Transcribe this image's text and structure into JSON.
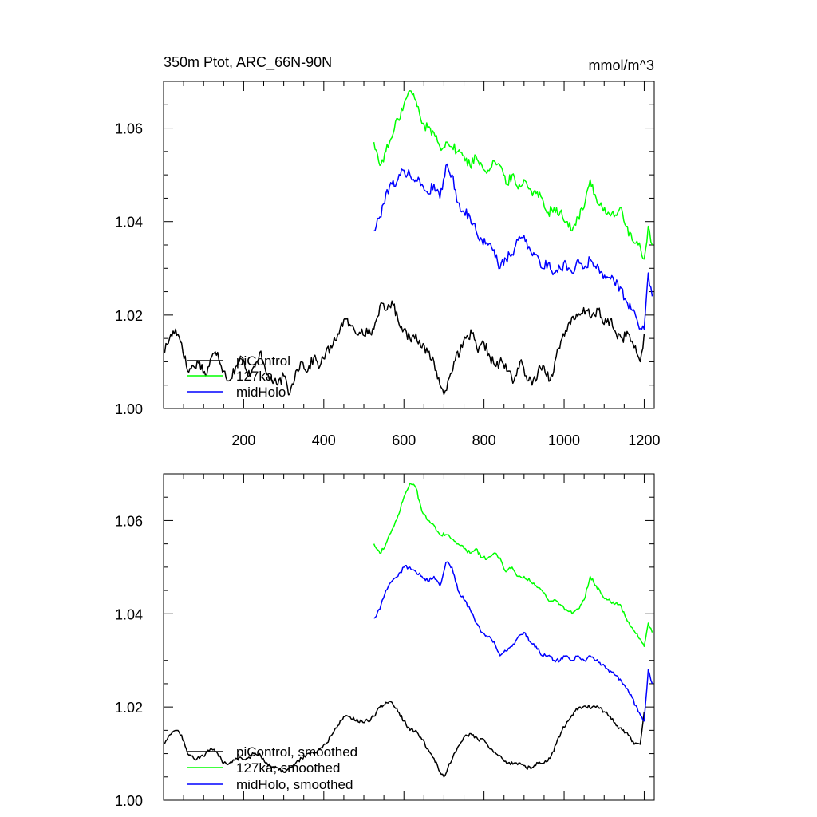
{
  "header": {
    "title": "350m Ptot, ARC_66N-90N",
    "units": "mmol/m^3"
  },
  "colors": {
    "piControl": "#000000",
    "127ka": "#00ff00",
    "midHolo": "#0000ff"
  },
  "chart_data": [
    {
      "type": "line",
      "panel": "top",
      "title": "350m Ptot, ARC_66N-90N",
      "units": "mmol/m^3",
      "xlim": [
        0,
        1225
      ],
      "ylim": [
        1.0,
        1.07
      ],
      "x_ticks": [
        200,
        400,
        600,
        800,
        1000,
        1200
      ],
      "x_tick_labels": [
        "200",
        "400",
        "600",
        "800",
        "1000",
        "1200"
      ],
      "y_ticks": [
        1.0,
        1.02,
        1.04,
        1.06
      ],
      "y_tick_labels": [
        "1.00",
        "1.02",
        "1.04",
        "1.06"
      ],
      "legend": "bottom-left",
      "series": [
        {
          "name": "piControl",
          "color": "#000000",
          "x": [
            0,
            15,
            30,
            45,
            60,
            75,
            90,
            105,
            120,
            135,
            150,
            165,
            180,
            195,
            210,
            225,
            240,
            255,
            270,
            285,
            300,
            315,
            330,
            345,
            360,
            375,
            390,
            405,
            420,
            435,
            450,
            465,
            480,
            495,
            510,
            525,
            540,
            555,
            570,
            585,
            600,
            615,
            630,
            645,
            660,
            675,
            690,
            700,
            710,
            725,
            740,
            755,
            770,
            785,
            800,
            815,
            830,
            845,
            860,
            875,
            890,
            905,
            920,
            935,
            950,
            965,
            980,
            995,
            1010,
            1025,
            1040,
            1055,
            1070,
            1085,
            1100,
            1115,
            1130,
            1145,
            1160,
            1175,
            1190,
            1200
          ],
          "y": [
            1.012,
            1.015,
            1.017,
            1.014,
            1.008,
            1.009,
            1.01,
            1.007,
            1.011,
            1.012,
            1.008,
            1.006,
            1.009,
            1.011,
            1.007,
            1.009,
            1.012,
            1.008,
            1.006,
            1.005,
            1.007,
            1.003,
            1.008,
            1.01,
            1.008,
            1.011,
            1.009,
            1.012,
            1.013,
            1.016,
            1.019,
            1.018,
            1.016,
            1.017,
            1.016,
            1.017,
            1.022,
            1.021,
            1.023,
            1.019,
            1.017,
            1.015,
            1.016,
            1.013,
            1.012,
            1.01,
            1.005,
            1.003,
            1.006,
            1.01,
            1.012,
            1.015,
            1.016,
            1.012,
            1.014,
            1.011,
            1.009,
            1.01,
            1.008,
            1.006,
            1.01,
            1.007,
            1.005,
            1.008,
            1.009,
            1.006,
            1.011,
            1.015,
            1.018,
            1.019,
            1.02,
            1.021,
            1.02,
            1.021,
            1.018,
            1.019,
            1.016,
            1.015,
            1.016,
            1.013,
            1.01,
            1.016
          ]
        },
        {
          "name": "127ka",
          "color": "#00ff00",
          "x": [
            525,
            540,
            555,
            570,
            585,
            600,
            615,
            630,
            645,
            660,
            675,
            690,
            705,
            720,
            735,
            750,
            765,
            780,
            795,
            810,
            825,
            840,
            855,
            870,
            885,
            900,
            915,
            930,
            945,
            960,
            975,
            990,
            1005,
            1020,
            1035,
            1050,
            1065,
            1080,
            1095,
            1110,
            1125,
            1140,
            1155,
            1170,
            1185,
            1200,
            1210,
            1220
          ],
          "y": [
            1.057,
            1.052,
            1.055,
            1.058,
            1.062,
            1.065,
            1.068,
            1.066,
            1.061,
            1.06,
            1.059,
            1.056,
            1.057,
            1.056,
            1.055,
            1.054,
            1.052,
            1.054,
            1.052,
            1.051,
            1.053,
            1.052,
            1.048,
            1.05,
            1.047,
            1.049,
            1.047,
            1.046,
            1.045,
            1.042,
            1.043,
            1.042,
            1.04,
            1.038,
            1.041,
            1.043,
            1.049,
            1.045,
            1.043,
            1.042,
            1.041,
            1.043,
            1.039,
            1.036,
            1.035,
            1.032,
            1.039,
            1.035
          ]
        },
        {
          "name": "midHolo",
          "color": "#0000ff",
          "x": [
            525,
            540,
            555,
            570,
            585,
            600,
            615,
            630,
            645,
            660,
            675,
            690,
            705,
            720,
            735,
            750,
            765,
            780,
            795,
            810,
            825,
            840,
            855,
            870,
            885,
            900,
            915,
            930,
            945,
            960,
            975,
            990,
            1005,
            1020,
            1035,
            1050,
            1065,
            1080,
            1095,
            1110,
            1125,
            1140,
            1155,
            1170,
            1185,
            1200,
            1210,
            1220
          ],
          "y": [
            1.038,
            1.041,
            1.046,
            1.048,
            1.049,
            1.051,
            1.05,
            1.049,
            1.048,
            1.046,
            1.048,
            1.045,
            1.052,
            1.05,
            1.044,
            1.042,
            1.041,
            1.038,
            1.036,
            1.035,
            1.034,
            1.03,
            1.032,
            1.033,
            1.036,
            1.037,
            1.034,
            1.033,
            1.03,
            1.031,
            1.029,
            1.03,
            1.031,
            1.029,
            1.032,
            1.03,
            1.032,
            1.03,
            1.029,
            1.028,
            1.027,
            1.026,
            1.023,
            1.021,
            1.018,
            1.017,
            1.029,
            1.024
          ]
        }
      ]
    },
    {
      "type": "line",
      "panel": "bottom",
      "xlim": [
        0,
        1225
      ],
      "ylim": [
        1.0,
        1.07
      ],
      "x_ticks": [
        200,
        400,
        600,
        800,
        1000,
        1200
      ],
      "x_tick_labels": [],
      "y_ticks": [
        1.0,
        1.02,
        1.04,
        1.06
      ],
      "y_tick_labels": [
        "1.00",
        "1.02",
        "1.04",
        "1.06"
      ],
      "legend": "bottom-left",
      "series": [
        {
          "name": "piControl, smoothed",
          "color": "#000000",
          "x": [
            0,
            15,
            30,
            45,
            60,
            75,
            90,
            105,
            120,
            135,
            150,
            165,
            180,
            195,
            210,
            225,
            240,
            255,
            270,
            285,
            300,
            315,
            330,
            345,
            360,
            375,
            390,
            405,
            420,
            435,
            450,
            465,
            480,
            495,
            510,
            525,
            540,
            555,
            570,
            585,
            600,
            615,
            630,
            645,
            660,
            675,
            690,
            700,
            710,
            725,
            740,
            755,
            770,
            785,
            800,
            815,
            830,
            845,
            860,
            875,
            890,
            905,
            920,
            935,
            950,
            965,
            980,
            995,
            1010,
            1025,
            1040,
            1055,
            1070,
            1085,
            1100,
            1115,
            1130,
            1145,
            1160,
            1175,
            1190,
            1200
          ],
          "y": [
            1.012,
            1.014,
            1.015,
            1.014,
            1.01,
            1.009,
            1.009,
            1.01,
            1.011,
            1.01,
            1.008,
            1.008,
            1.009,
            1.009,
            1.009,
            1.01,
            1.01,
            1.008,
            1.007,
            1.007,
            1.006,
            1.007,
            1.008,
            1.009,
            1.01,
            1.01,
            1.011,
            1.012,
            1.014,
            1.016,
            1.018,
            1.018,
            1.017,
            1.017,
            1.017,
            1.018,
            1.02,
            1.021,
            1.021,
            1.019,
            1.017,
            1.015,
            1.015,
            1.013,
            1.011,
            1.009,
            1.006,
            1.005,
            1.007,
            1.01,
            1.012,
            1.014,
            1.014,
            1.013,
            1.013,
            1.011,
            1.01,
            1.009,
            1.008,
            1.008,
            1.008,
            1.007,
            1.007,
            1.008,
            1.008,
            1.009,
            1.012,
            1.015,
            1.017,
            1.019,
            1.02,
            1.02,
            1.02,
            1.02,
            1.019,
            1.018,
            1.016,
            1.015,
            1.014,
            1.012,
            1.012,
            1.019
          ]
        },
        {
          "name": "127ka, smoothed",
          "color": "#00ff00",
          "x": [
            525,
            540,
            555,
            570,
            585,
            600,
            615,
            630,
            645,
            660,
            675,
            690,
            705,
            720,
            735,
            750,
            765,
            780,
            795,
            810,
            825,
            840,
            855,
            870,
            885,
            900,
            915,
            930,
            945,
            960,
            975,
            990,
            1005,
            1020,
            1035,
            1050,
            1065,
            1080,
            1095,
            1110,
            1125,
            1140,
            1155,
            1170,
            1185,
            1200,
            1210,
            1220
          ],
          "y": [
            1.055,
            1.053,
            1.055,
            1.058,
            1.061,
            1.065,
            1.068,
            1.067,
            1.062,
            1.06,
            1.059,
            1.057,
            1.057,
            1.056,
            1.055,
            1.054,
            1.053,
            1.054,
            1.052,
            1.052,
            1.053,
            1.052,
            1.049,
            1.05,
            1.048,
            1.048,
            1.047,
            1.046,
            1.045,
            1.043,
            1.043,
            1.042,
            1.041,
            1.04,
            1.041,
            1.043,
            1.048,
            1.046,
            1.044,
            1.043,
            1.042,
            1.042,
            1.039,
            1.037,
            1.035,
            1.033,
            1.038,
            1.036
          ]
        },
        {
          "name": "midHolo, smoothed",
          "color": "#0000ff",
          "x": [
            525,
            540,
            555,
            570,
            585,
            600,
            615,
            630,
            645,
            660,
            675,
            690,
            705,
            720,
            735,
            750,
            765,
            780,
            795,
            810,
            825,
            840,
            855,
            870,
            885,
            900,
            915,
            930,
            945,
            960,
            975,
            990,
            1005,
            1020,
            1035,
            1050,
            1065,
            1080,
            1095,
            1110,
            1125,
            1140,
            1155,
            1170,
            1185,
            1200,
            1210,
            1220
          ],
          "y": [
            1.039,
            1.041,
            1.045,
            1.047,
            1.048,
            1.05,
            1.05,
            1.049,
            1.048,
            1.047,
            1.048,
            1.046,
            1.051,
            1.05,
            1.045,
            1.043,
            1.041,
            1.038,
            1.036,
            1.035,
            1.034,
            1.031,
            1.032,
            1.033,
            1.035,
            1.036,
            1.034,
            1.033,
            1.031,
            1.031,
            1.03,
            1.03,
            1.031,
            1.03,
            1.031,
            1.03,
            1.031,
            1.03,
            1.029,
            1.028,
            1.027,
            1.026,
            1.024,
            1.022,
            1.019,
            1.017,
            1.028,
            1.025
          ]
        }
      ]
    }
  ]
}
